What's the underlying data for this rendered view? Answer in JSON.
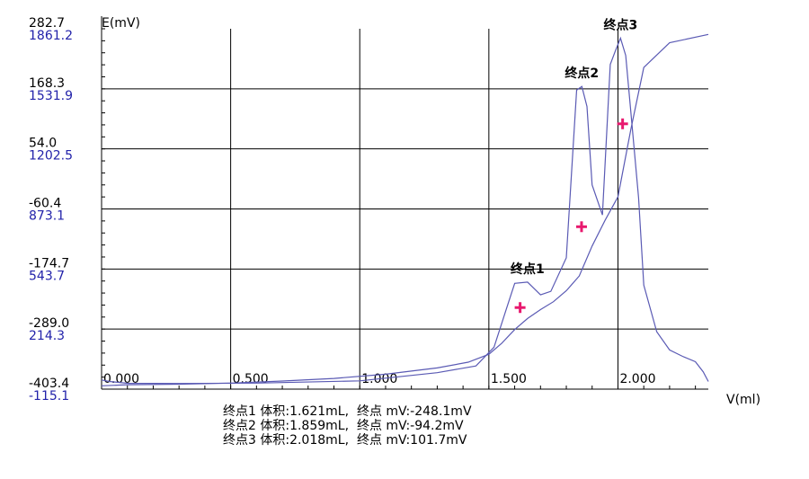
{
  "chart_data": {
    "type": "line",
    "title": "",
    "ylabel": "E(mV)",
    "xlabel": "V(ml)",
    "xlim": [
      0,
      2.35
    ],
    "x_ticks": [
      "0.000",
      "0.500",
      "1.000",
      "1.500",
      "2.000"
    ],
    "x_tick_values": [
      0,
      0.5,
      1.0,
      1.5,
      2.0
    ],
    "y_ticks_primary": [
      "282.7",
      "168.3",
      "54.0",
      "-60.4",
      "-174.7",
      "-289.0",
      "-403.4"
    ],
    "y_ticks_secondary": [
      "1861.2",
      "1531.9",
      "1202.5",
      "873.1",
      "543.7",
      "214.3",
      "-115.1"
    ],
    "ylim_primary": [
      -403.4,
      282.7
    ],
    "ylim_secondary": [
      -115.1,
      1861.2
    ],
    "grid": true,
    "colors": {
      "series": "#5a5ab4",
      "endpoint_marker": "#e8196e",
      "primary_axis": "#000000",
      "secondary_axis": "#2222aa"
    },
    "series": [
      {
        "axis": "primary",
        "x": [
          0.0,
          0.1,
          0.3,
          0.5,
          0.7,
          0.9,
          1.1,
          1.3,
          1.42,
          1.5,
          1.55,
          1.6,
          1.65,
          1.7,
          1.75,
          1.8,
          1.85,
          1.9,
          1.95,
          2.0,
          2.05,
          2.1,
          2.2,
          2.35
        ],
        "y": [
          -397,
          -395,
          -394,
          -392,
          -388,
          -383,
          -375,
          -363,
          -352,
          -337,
          -316,
          -290,
          -269,
          -252,
          -237,
          -216,
          -188,
          -131,
          -82,
          -37,
          91,
          209,
          256,
          272
        ]
      },
      {
        "axis": "secondary",
        "x": [
          0.0,
          0.03,
          0.1,
          0.3,
          0.6,
          1.0,
          1.3,
          1.45,
          1.52,
          1.57,
          1.6,
          1.65,
          1.7,
          1.74,
          1.8,
          1.84,
          1.86,
          1.88,
          1.9,
          1.94,
          1.97,
          1.99,
          2.01,
          2.03,
          2.05,
          2.08,
          2.1,
          2.15,
          2.2,
          2.25,
          2.3,
          2.33,
          2.35
        ],
        "y": [
          -65,
          -73,
          -83,
          -84,
          -82,
          -70,
          -25,
          12,
          115,
          335,
          465,
          472,
          402,
          421,
          605,
          1525,
          1545,
          1435,
          1005,
          840,
          1665,
          1740,
          1810,
          1715,
          1405,
          935,
          455,
          200,
          100,
          65,
          35,
          -20,
          -73
        ]
      }
    ],
    "endpoints": [
      {
        "label": "终点1",
        "volume": 1.621,
        "mV": -248.1
      },
      {
        "label": "终点2",
        "volume": 1.859,
        "mV": -94.2
      },
      {
        "label": "终点3",
        "volume": 2.018,
        "mV": 101.7
      }
    ],
    "annotations": [
      {
        "text": "终点1",
        "x": 1.65,
        "y_secondary": 472
      },
      {
        "text": "终点2",
        "x": 1.86,
        "y_secondary": 1545
      },
      {
        "text": "终点3",
        "x": 2.01,
        "y_secondary": 1810
      }
    ],
    "footer_lines": [
      "终点1 体积:1.621mL,  终点 mV:-248.1mV",
      "终点2 体积:1.859mL,  终点 mV:-94.2mV",
      "终点3 体积:2.018mL,  终点 mV:101.7mV"
    ]
  }
}
